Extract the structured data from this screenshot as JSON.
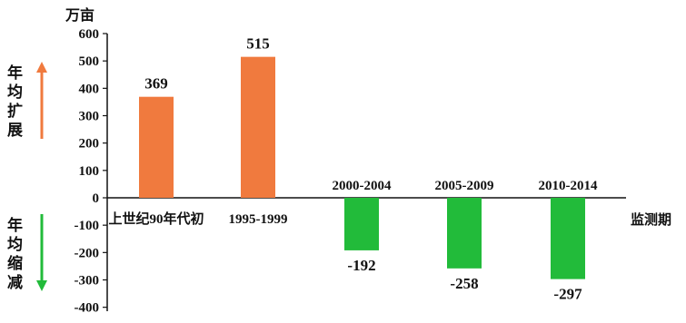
{
  "chart_data": {
    "type": "bar",
    "categories": [
      "上世纪90年代初",
      "1995-1999",
      "2000-2004",
      "2005-2009",
      "2010-2014"
    ],
    "values": [
      369,
      515,
      -192,
      -258,
      -297
    ],
    "ylim": [
      -400,
      600
    ],
    "yticks": [
      "600",
      "500",
      "400",
      "300",
      "200",
      "100",
      "0",
      "-100",
      "-200",
      "-300",
      "-400"
    ],
    "ylabel": "万亩",
    "xlabel": "监测期",
    "data_labels": [
      "369",
      "515",
      "-192",
      "-258",
      "-297"
    ],
    "positive_label": "年均扩展",
    "negative_label": "年均缩减",
    "colors": {
      "positive": "#F07A3E",
      "negative": "#22BB3A",
      "axis": "#111111"
    },
    "grid": false
  }
}
